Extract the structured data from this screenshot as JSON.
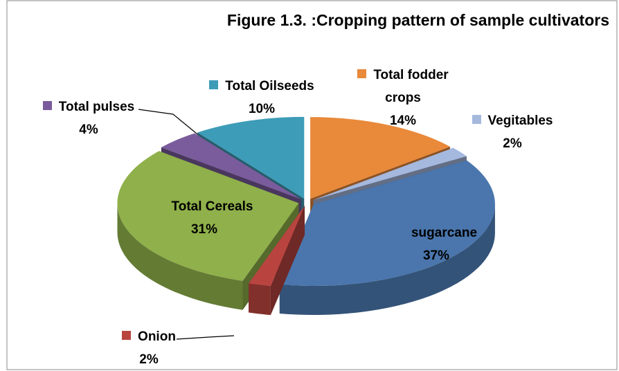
{
  "chart_data": {
    "type": "pie",
    "title": "Figure 1.3. :Cropping pattern of sample cultivators",
    "categories": [
      "Total fodder crops",
      "Vegitables",
      "sugarcane",
      "Onion",
      "Total Cereals",
      "Total pulses",
      "Total Oilseeds"
    ],
    "values": [
      14,
      2,
      37,
      2,
      31,
      4,
      10
    ],
    "value_labels": [
      "14%",
      "2%",
      "37%",
      "2%",
      "31%",
      "4%",
      "10%"
    ],
    "colors": [
      "#e9893a",
      "#a5b8de",
      "#4a76ad",
      "#b9443f",
      "#8fb04a",
      "#7a5c9c",
      "#3d9cb7"
    ]
  }
}
